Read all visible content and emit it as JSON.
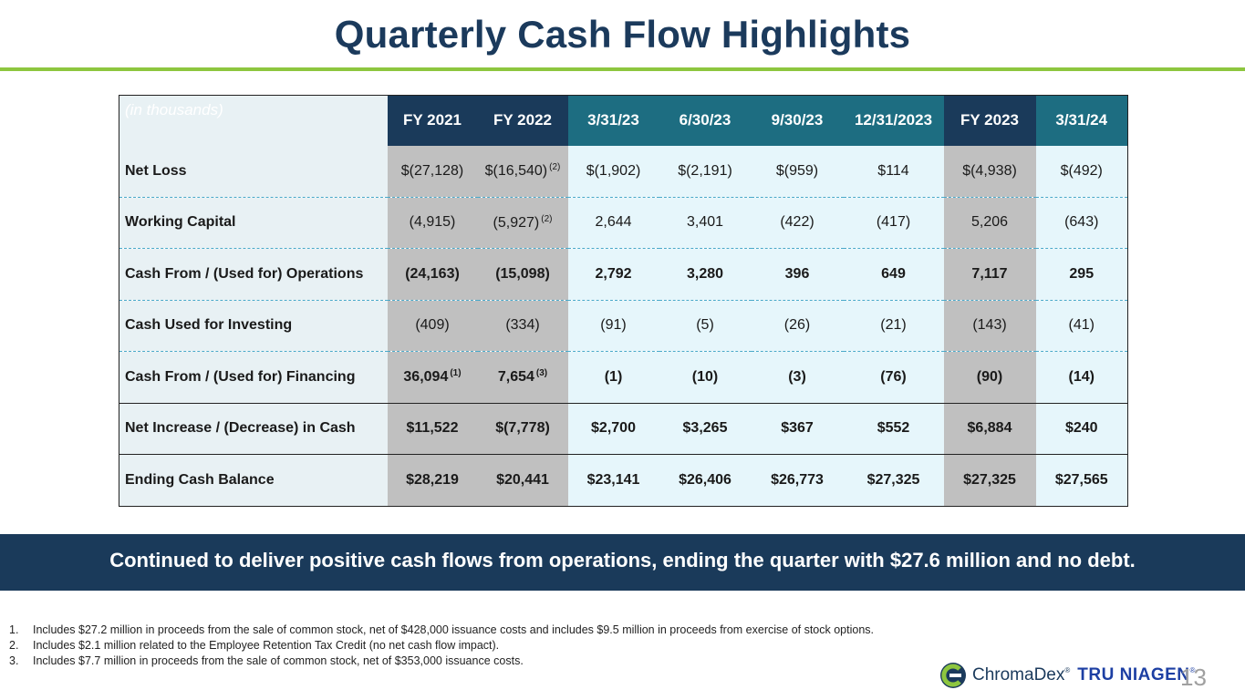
{
  "title": "Quarterly Cash Flow Highlights",
  "table": {
    "unit_label": "(in thousands)",
    "columns": [
      "FY 2021",
      "FY 2022",
      "3/31/23",
      "6/30/23",
      "9/30/23",
      "12/31/2023",
      "FY 2023",
      "3/31/24"
    ],
    "rows": [
      {
        "label": "Net Loss",
        "cells": [
          {
            "v": "$(27,128)",
            "n": ""
          },
          {
            "v": "$(16,540)",
            "n": "(2)"
          },
          {
            "v": "$(1,902)",
            "n": ""
          },
          {
            "v": "$(2,191)",
            "n": ""
          },
          {
            "v": "$(959)",
            "n": ""
          },
          {
            "v": "$114",
            "n": ""
          },
          {
            "v": "$(4,938)",
            "n": ""
          },
          {
            "v": "$(492)",
            "n": ""
          }
        ]
      },
      {
        "label": "Working Capital",
        "cells": [
          {
            "v": "(4,915)",
            "n": ""
          },
          {
            "v": "(5,927)",
            "n": "(2)"
          },
          {
            "v": "2,644",
            "n": ""
          },
          {
            "v": "3,401",
            "n": ""
          },
          {
            "v": "(422)",
            "n": ""
          },
          {
            "v": "(417)",
            "n": ""
          },
          {
            "v": "5,206",
            "n": ""
          },
          {
            "v": "(643)",
            "n": ""
          }
        ]
      },
      {
        "label": "Cash From / (Used for) Operations",
        "cells": [
          {
            "v": "(24,163)",
            "n": ""
          },
          {
            "v": "(15,098)",
            "n": ""
          },
          {
            "v": "2,792",
            "n": ""
          },
          {
            "v": "3,280",
            "n": ""
          },
          {
            "v": "396",
            "n": ""
          },
          {
            "v": "649",
            "n": ""
          },
          {
            "v": "7,117",
            "n": ""
          },
          {
            "v": "295",
            "n": ""
          }
        ]
      },
      {
        "label": "Cash Used for Investing",
        "cells": [
          {
            "v": "(409)",
            "n": ""
          },
          {
            "v": "(334)",
            "n": ""
          },
          {
            "v": "(91)",
            "n": ""
          },
          {
            "v": "(5)",
            "n": ""
          },
          {
            "v": "(26)",
            "n": ""
          },
          {
            "v": "(21)",
            "n": ""
          },
          {
            "v": "(143)",
            "n": ""
          },
          {
            "v": "(41)",
            "n": ""
          }
        ]
      },
      {
        "label": "Cash From / (Used for) Financing",
        "cells": [
          {
            "v": "36,094",
            "n": "(1)"
          },
          {
            "v": "7,654",
            "n": "(3)"
          },
          {
            "v": "(1)",
            "n": ""
          },
          {
            "v": "(10)",
            "n": ""
          },
          {
            "v": "(3)",
            "n": ""
          },
          {
            "v": "(76)",
            "n": ""
          },
          {
            "v": "(90)",
            "n": ""
          },
          {
            "v": "(14)",
            "n": ""
          }
        ]
      },
      {
        "label": "Net Increase / (Decrease) in Cash",
        "cells": [
          {
            "v": "$11,522",
            "n": ""
          },
          {
            "v": "$(7,778)",
            "n": ""
          },
          {
            "v": "$2,700",
            "n": ""
          },
          {
            "v": "$3,265",
            "n": ""
          },
          {
            "v": "$367",
            "n": ""
          },
          {
            "v": "$552",
            "n": ""
          },
          {
            "v": "$6,884",
            "n": ""
          },
          {
            "v": "$240",
            "n": ""
          }
        ]
      },
      {
        "label": "Ending Cash Balance",
        "cells": [
          {
            "v": "$28,219",
            "n": ""
          },
          {
            "v": "$20,441",
            "n": ""
          },
          {
            "v": "$23,141",
            "n": ""
          },
          {
            "v": "$26,406",
            "n": ""
          },
          {
            "v": "$26,773",
            "n": ""
          },
          {
            "v": "$27,325",
            "n": ""
          },
          {
            "v": "$27,325",
            "n": ""
          },
          {
            "v": "$27,565",
            "n": ""
          }
        ]
      }
    ]
  },
  "banner": "Continued to deliver positive cash flows from operations, ending the quarter with $27.6 million and no debt.",
  "footnotes": [
    {
      "num": "1.",
      "text": "Includes $27.2 million in proceeds from the sale of common stock, net of $428,000 issuance costs and includes $9.5 million in proceeds from exercise of stock options."
    },
    {
      "num": "2.",
      "text": "Includes $2.1 million related to the Employee Retention Tax Credit (no net cash flow impact)."
    },
    {
      "num": "3.",
      "text": "Includes $7.7 million in proceeds from the sale of common stock, net of $353,000 issuance costs."
    }
  ],
  "logo": {
    "brand1": "ChromaDex",
    "brand2": "TRU NIAGEN",
    "reg": "®"
  },
  "page_number": "13",
  "colors": {
    "navy": "#1a3a5a",
    "teal": "#1d6d81",
    "accent_green": "#8dc63f",
    "gray_col": "#c0c0c0",
    "light_col": "#e6f6fb"
  }
}
